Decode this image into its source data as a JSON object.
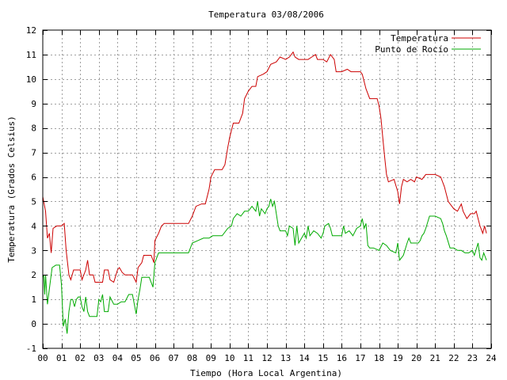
{
  "chart_data": {
    "type": "line",
    "title": "Temperatura 03/08/2006",
    "xlabel": "Tiempo (Hora Local Argentina)",
    "ylabel": "Temperatura (Grados Celsius)",
    "xlim": [
      0,
      24
    ],
    "ylim": [
      -1,
      12
    ],
    "x_ticks": [
      "00",
      "01",
      "02",
      "03",
      "04",
      "05",
      "06",
      "07",
      "08",
      "09",
      "10",
      "11",
      "12",
      "13",
      "14",
      "15",
      "16",
      "17",
      "18",
      "19",
      "20",
      "21",
      "22",
      "23",
      "24"
    ],
    "y_ticks": [
      "-1",
      "0",
      "1",
      "2",
      "3",
      "4",
      "5",
      "6",
      "7",
      "8",
      "9",
      "10",
      "11",
      "12"
    ],
    "grid": true,
    "legend_position": "top-right",
    "series": [
      {
        "name": "Temperatura",
        "color": "#cc0000",
        "points": [
          [
            0.0,
            5.2
          ],
          [
            0.15,
            4.6
          ],
          [
            0.25,
            3.5
          ],
          [
            0.35,
            3.7
          ],
          [
            0.45,
            2.9
          ],
          [
            0.55,
            3.9
          ],
          [
            0.75,
            4.0
          ],
          [
            1.0,
            4.0
          ],
          [
            1.15,
            4.1
          ],
          [
            1.25,
            3.0
          ],
          [
            1.4,
            2.0
          ],
          [
            1.5,
            1.8
          ],
          [
            1.65,
            2.2
          ],
          [
            2.0,
            2.2
          ],
          [
            2.1,
            1.8
          ],
          [
            2.3,
            2.2
          ],
          [
            2.4,
            2.6
          ],
          [
            2.5,
            2.0
          ],
          [
            2.7,
            2.0
          ],
          [
            2.8,
            1.7
          ],
          [
            3.0,
            1.7
          ],
          [
            3.2,
            1.7
          ],
          [
            3.3,
            2.2
          ],
          [
            3.5,
            2.2
          ],
          [
            3.6,
            1.8
          ],
          [
            3.8,
            1.7
          ],
          [
            4.0,
            2.2
          ],
          [
            4.1,
            2.3
          ],
          [
            4.25,
            2.1
          ],
          [
            4.4,
            2.0
          ],
          [
            4.6,
            2.0
          ],
          [
            4.8,
            2.0
          ],
          [
            5.0,
            1.7
          ],
          [
            5.1,
            2.3
          ],
          [
            5.3,
            2.5
          ],
          [
            5.4,
            2.8
          ],
          [
            5.6,
            2.8
          ],
          [
            5.8,
            2.8
          ],
          [
            5.95,
            2.5
          ],
          [
            6.0,
            3.4
          ],
          [
            6.2,
            3.7
          ],
          [
            6.35,
            4.0
          ],
          [
            6.5,
            4.1
          ],
          [
            6.8,
            4.1
          ],
          [
            7.2,
            4.1
          ],
          [
            7.6,
            4.1
          ],
          [
            7.8,
            4.1
          ],
          [
            8.0,
            4.4
          ],
          [
            8.2,
            4.8
          ],
          [
            8.5,
            4.9
          ],
          [
            8.7,
            4.9
          ],
          [
            8.9,
            5.5
          ],
          [
            9.0,
            6.0
          ],
          [
            9.2,
            6.3
          ],
          [
            9.6,
            6.3
          ],
          [
            9.75,
            6.5
          ],
          [
            9.9,
            7.2
          ],
          [
            10.0,
            7.6
          ],
          [
            10.2,
            8.2
          ],
          [
            10.5,
            8.2
          ],
          [
            10.7,
            8.6
          ],
          [
            10.8,
            9.2
          ],
          [
            11.0,
            9.5
          ],
          [
            11.2,
            9.7
          ],
          [
            11.4,
            9.7
          ],
          [
            11.5,
            10.1
          ],
          [
            11.8,
            10.2
          ],
          [
            12.0,
            10.3
          ],
          [
            12.2,
            10.6
          ],
          [
            12.5,
            10.7
          ],
          [
            12.7,
            10.9
          ],
          [
            13.0,
            10.8
          ],
          [
            13.2,
            10.9
          ],
          [
            13.4,
            11.1
          ],
          [
            13.5,
            10.9
          ],
          [
            13.7,
            10.8
          ],
          [
            14.0,
            10.8
          ],
          [
            14.2,
            10.8
          ],
          [
            14.4,
            10.9
          ],
          [
            14.6,
            11.0
          ],
          [
            14.7,
            10.8
          ],
          [
            15.0,
            10.8
          ],
          [
            15.2,
            10.7
          ],
          [
            15.4,
            11.0
          ],
          [
            15.6,
            10.8
          ],
          [
            15.7,
            10.3
          ],
          [
            16.0,
            10.3
          ],
          [
            16.3,
            10.4
          ],
          [
            16.5,
            10.3
          ],
          [
            17.0,
            10.3
          ],
          [
            17.1,
            10.2
          ],
          [
            17.3,
            9.6
          ],
          [
            17.5,
            9.2
          ],
          [
            17.9,
            9.2
          ],
          [
            18.0,
            8.9
          ],
          [
            18.1,
            8.4
          ],
          [
            18.2,
            7.6
          ],
          [
            18.3,
            6.8
          ],
          [
            18.4,
            6.1
          ],
          [
            18.5,
            5.8
          ],
          [
            18.8,
            5.9
          ],
          [
            19.0,
            5.4
          ],
          [
            19.1,
            4.9
          ],
          [
            19.2,
            5.6
          ],
          [
            19.3,
            5.9
          ],
          [
            19.5,
            5.8
          ],
          [
            19.7,
            5.9
          ],
          [
            19.9,
            5.8
          ],
          [
            20.0,
            6.0
          ],
          [
            20.3,
            5.9
          ],
          [
            20.5,
            6.1
          ],
          [
            20.8,
            6.1
          ],
          [
            21.0,
            6.1
          ],
          [
            21.3,
            6.0
          ],
          [
            21.5,
            5.6
          ],
          [
            21.7,
            5.0
          ],
          [
            22.0,
            4.7
          ],
          [
            22.2,
            4.6
          ],
          [
            22.4,
            4.9
          ],
          [
            22.5,
            4.6
          ],
          [
            22.7,
            4.3
          ],
          [
            22.9,
            4.5
          ],
          [
            23.1,
            4.5
          ],
          [
            23.2,
            4.6
          ],
          [
            23.3,
            4.3
          ],
          [
            23.4,
            4.0
          ],
          [
            23.55,
            3.7
          ],
          [
            23.65,
            4.0
          ],
          [
            23.75,
            3.7
          ]
        ]
      },
      {
        "name": "Punto de Rocío",
        "color": "#00aa00",
        "points": [
          [
            0.0,
            1.9
          ],
          [
            0.05,
            2.0
          ],
          [
            0.1,
            1.2
          ],
          [
            0.15,
            2.0
          ],
          [
            0.25,
            0.8
          ],
          [
            0.4,
            1.7
          ],
          [
            0.5,
            2.3
          ],
          [
            0.7,
            2.4
          ],
          [
            0.9,
            2.4
          ],
          [
            1.0,
            1.6
          ],
          [
            1.1,
            -0.1
          ],
          [
            1.2,
            0.2
          ],
          [
            1.3,
            -0.4
          ],
          [
            1.4,
            0.5
          ],
          [
            1.5,
            1.0
          ],
          [
            1.6,
            1.0
          ],
          [
            1.7,
            0.7
          ],
          [
            1.8,
            1.0
          ],
          [
            1.9,
            1.1
          ],
          [
            2.0,
            1.1
          ],
          [
            2.1,
            0.7
          ],
          [
            2.2,
            0.5
          ],
          [
            2.3,
            1.1
          ],
          [
            2.4,
            0.5
          ],
          [
            2.5,
            0.3
          ],
          [
            2.7,
            0.3
          ],
          [
            2.9,
            0.3
          ],
          [
            3.0,
            1.0
          ],
          [
            3.1,
            0.9
          ],
          [
            3.2,
            1.2
          ],
          [
            3.3,
            0.5
          ],
          [
            3.5,
            0.5
          ],
          [
            3.6,
            1.1
          ],
          [
            3.8,
            0.8
          ],
          [
            4.0,
            0.8
          ],
          [
            4.2,
            0.9
          ],
          [
            4.4,
            0.9
          ],
          [
            4.6,
            1.2
          ],
          [
            4.8,
            1.2
          ],
          [
            5.0,
            0.4
          ],
          [
            5.1,
            1.0
          ],
          [
            5.2,
            1.4
          ],
          [
            5.3,
            1.9
          ],
          [
            5.5,
            1.9
          ],
          [
            5.7,
            1.9
          ],
          [
            5.9,
            1.5
          ],
          [
            6.0,
            2.5
          ],
          [
            6.2,
            2.9
          ],
          [
            6.4,
            2.9
          ],
          [
            6.6,
            2.9
          ],
          [
            7.0,
            2.9
          ],
          [
            7.4,
            2.9
          ],
          [
            7.8,
            2.9
          ],
          [
            8.0,
            3.3
          ],
          [
            8.3,
            3.4
          ],
          [
            8.6,
            3.5
          ],
          [
            8.9,
            3.5
          ],
          [
            9.1,
            3.6
          ],
          [
            9.3,
            3.6
          ],
          [
            9.6,
            3.6
          ],
          [
            9.9,
            3.9
          ],
          [
            10.1,
            4.0
          ],
          [
            10.2,
            4.3
          ],
          [
            10.4,
            4.5
          ],
          [
            10.6,
            4.4
          ],
          [
            10.8,
            4.6
          ],
          [
            11.0,
            4.6
          ],
          [
            11.2,
            4.8
          ],
          [
            11.4,
            4.6
          ],
          [
            11.5,
            5.0
          ],
          [
            11.6,
            4.4
          ],
          [
            11.7,
            4.7
          ],
          [
            11.9,
            4.5
          ],
          [
            12.0,
            4.7
          ],
          [
            12.1,
            4.8
          ],
          [
            12.2,
            5.1
          ],
          [
            12.3,
            4.8
          ],
          [
            12.4,
            5.0
          ],
          [
            12.5,
            4.5
          ],
          [
            12.6,
            4.0
          ],
          [
            12.7,
            3.8
          ],
          [
            12.9,
            3.8
          ],
          [
            13.0,
            3.8
          ],
          [
            13.1,
            3.6
          ],
          [
            13.2,
            4.0
          ],
          [
            13.4,
            3.9
          ],
          [
            13.5,
            3.2
          ],
          [
            13.6,
            4.0
          ],
          [
            13.7,
            3.3
          ],
          [
            14.0,
            3.7
          ],
          [
            14.1,
            3.5
          ],
          [
            14.2,
            4.0
          ],
          [
            14.3,
            3.6
          ],
          [
            14.5,
            3.8
          ],
          [
            14.7,
            3.7
          ],
          [
            14.9,
            3.5
          ],
          [
            15.0,
            3.7
          ],
          [
            15.1,
            4.0
          ],
          [
            15.3,
            4.1
          ],
          [
            15.4,
            3.9
          ],
          [
            15.5,
            3.6
          ],
          [
            15.8,
            3.6
          ],
          [
            16.0,
            3.6
          ],
          [
            16.1,
            4.0
          ],
          [
            16.2,
            3.7
          ],
          [
            16.4,
            3.8
          ],
          [
            16.6,
            3.6
          ],
          [
            16.8,
            3.9
          ],
          [
            17.0,
            4.0
          ],
          [
            17.1,
            4.3
          ],
          [
            17.2,
            3.9
          ],
          [
            17.3,
            4.1
          ],
          [
            17.4,
            3.2
          ],
          [
            17.5,
            3.1
          ],
          [
            17.7,
            3.1
          ],
          [
            18.0,
            3.0
          ],
          [
            18.2,
            3.3
          ],
          [
            18.4,
            3.2
          ],
          [
            18.6,
            3.0
          ],
          [
            18.9,
            2.9
          ],
          [
            19.0,
            3.3
          ],
          [
            19.1,
            2.6
          ],
          [
            19.3,
            2.8
          ],
          [
            19.5,
            3.3
          ],
          [
            19.6,
            3.5
          ],
          [
            19.7,
            3.3
          ],
          [
            19.9,
            3.3
          ],
          [
            20.1,
            3.3
          ],
          [
            20.2,
            3.4
          ],
          [
            20.3,
            3.6
          ],
          [
            20.4,
            3.7
          ],
          [
            20.5,
            3.9
          ],
          [
            20.7,
            4.4
          ],
          [
            21.0,
            4.4
          ],
          [
            21.3,
            4.3
          ],
          [
            21.4,
            4.1
          ],
          [
            21.5,
            3.8
          ],
          [
            21.6,
            3.6
          ],
          [
            21.8,
            3.1
          ],
          [
            22.0,
            3.1
          ],
          [
            22.2,
            3.0
          ],
          [
            22.4,
            3.0
          ],
          [
            22.6,
            2.9
          ],
          [
            22.8,
            2.9
          ],
          [
            23.0,
            3.0
          ],
          [
            23.1,
            2.8
          ],
          [
            23.3,
            3.3
          ],
          [
            23.4,
            2.7
          ],
          [
            23.5,
            2.6
          ],
          [
            23.6,
            2.9
          ],
          [
            23.75,
            2.6
          ]
        ]
      }
    ]
  }
}
